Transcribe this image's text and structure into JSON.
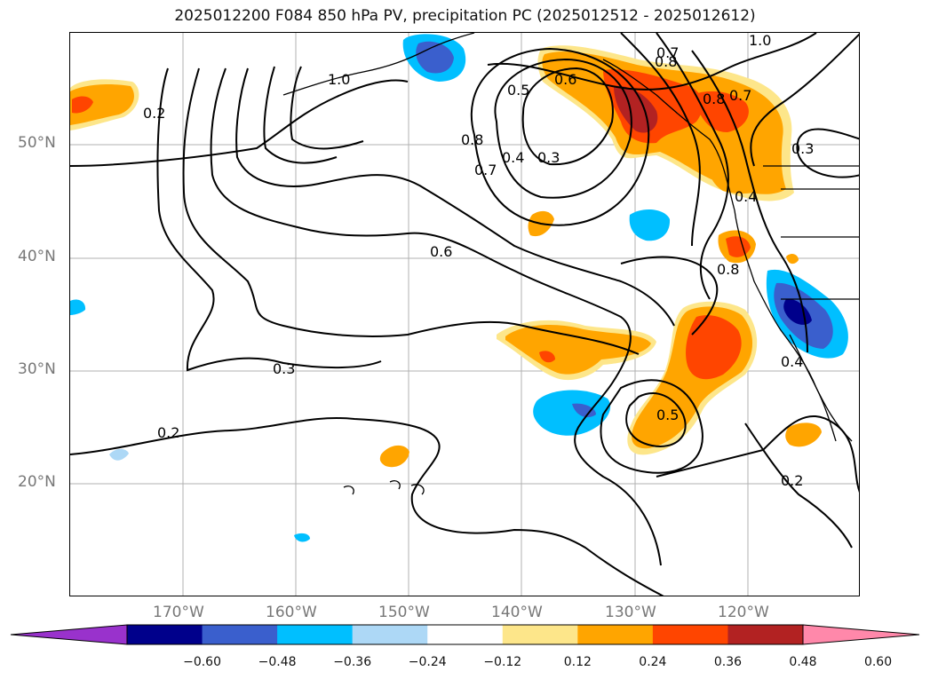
{
  "title": "2025012200 F084 850 hPa PV, precipitation PC (2025012512 - 2025012612)",
  "map": {
    "lat_labels": [
      "50°N",
      "40°N",
      "30°N",
      "20°N"
    ],
    "lon_labels": [
      "170°W",
      "160°W",
      "150°W",
      "140°W",
      "130°W",
      "120°W"
    ],
    "contour_labels": [
      "1.0",
      "1.0",
      "0.7",
      "0.8",
      "0.2",
      "0.5",
      "0.6",
      "0.8",
      "0.7",
      "0.4",
      "0.3",
      "0.8",
      "0.7",
      "0.3",
      "0.4",
      "0.6",
      "0.3",
      "0.8",
      "0.5",
      "0.4",
      "0.2",
      "0.2"
    ]
  },
  "colorbar": {
    "ticks": [
      "−0.60",
      "−0.48",
      "−0.36",
      "−0.24",
      "−0.12",
      "0.12",
      "0.24",
      "0.36",
      "0.48",
      "0.60"
    ],
    "colors": [
      "#9932cc",
      "#00008b",
      "#3a5fcd",
      "#00bfff",
      "#add8f6",
      "#ffffff",
      "#fde68a",
      "#ffa500",
      "#ff4500",
      "#b22222",
      "#ff88aa"
    ]
  }
}
